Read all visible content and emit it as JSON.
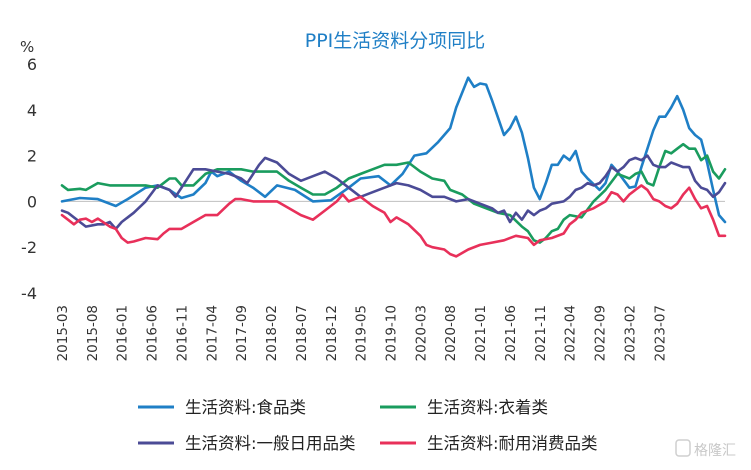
{
  "chart_data": {
    "type": "line",
    "title": "PPI生活资料分项同比",
    "ylabel": "%",
    "ylim": [
      -4,
      6
    ],
    "y_ticks": [
      "-4",
      "-2",
      "0",
      "2",
      "4",
      "6"
    ],
    "x_ticks": [
      "2015-03",
      "2015-08",
      "2016-01",
      "2016-06",
      "2016-11",
      "2017-04",
      "2017-09",
      "2018-02",
      "2018-07",
      "2018-12",
      "2019-05",
      "2019-10",
      "2020-03",
      "2020-08",
      "2021-01",
      "2021-06",
      "2021-11",
      "2022-04",
      "2022-09",
      "2023-02",
      "2023-07"
    ],
    "x_start": "2015-03",
    "x_end": "2023-07",
    "legend_position": "bottom",
    "series": [
      {
        "name": "生活资料:食品类",
        "color": "#1f7fc6",
        "keyframes": [
          [
            0,
            0.0
          ],
          [
            3,
            0.15
          ],
          [
            6,
            0.1
          ],
          [
            9,
            -0.2
          ],
          [
            11,
            0.1
          ],
          [
            14,
            0.6
          ],
          [
            16,
            0.7
          ],
          [
            18,
            0.5
          ],
          [
            20,
            0.15
          ],
          [
            22,
            0.3
          ],
          [
            24,
            0.8
          ],
          [
            25,
            1.3
          ],
          [
            26,
            1.1
          ],
          [
            28,
            1.3
          ],
          [
            30,
            0.9
          ],
          [
            32,
            0.6
          ],
          [
            34,
            0.2
          ],
          [
            36,
            0.7
          ],
          [
            39,
            0.5
          ],
          [
            42,
            0.0
          ],
          [
            45,
            0.05
          ],
          [
            48,
            0.6
          ],
          [
            50,
            1.0
          ],
          [
            53,
            1.1
          ],
          [
            55,
            0.7
          ],
          [
            57,
            1.2
          ],
          [
            59,
            2.0
          ],
          [
            61,
            2.1
          ],
          [
            63,
            2.6
          ],
          [
            65,
            3.2
          ],
          [
            66,
            4.1
          ],
          [
            68,
            5.4
          ],
          [
            69,
            5.0
          ],
          [
            70,
            5.15
          ],
          [
            71,
            5.1
          ],
          [
            72,
            4.4
          ],
          [
            74,
            2.9
          ],
          [
            75,
            3.2
          ],
          [
            76,
            3.7
          ],
          [
            77,
            3.0
          ],
          [
            78,
            1.9
          ],
          [
            79,
            0.6
          ],
          [
            80,
            0.1
          ],
          [
            81,
            0.8
          ],
          [
            82,
            1.6
          ],
          [
            83,
            1.6
          ],
          [
            84,
            2.0
          ],
          [
            85,
            1.8
          ],
          [
            86,
            2.2
          ],
          [
            87,
            1.3
          ],
          [
            88,
            1.0
          ],
          [
            90,
            0.5
          ],
          [
            91,
            0.8
          ],
          [
            92,
            1.6
          ],
          [
            93,
            1.3
          ],
          [
            95,
            0.6
          ],
          [
            96,
            0.65
          ],
          [
            97,
            1.5
          ],
          [
            98,
            2.3
          ],
          [
            99,
            3.1
          ],
          [
            100,
            3.7
          ],
          [
            101,
            3.7
          ],
          [
            102,
            4.1
          ],
          [
            103,
            4.6
          ],
          [
            104,
            4.0
          ],
          [
            105,
            3.2
          ],
          [
            106,
            2.9
          ],
          [
            107,
            2.7
          ],
          [
            108,
            1.7
          ],
          [
            109,
            0.5
          ],
          [
            110,
            -0.6
          ],
          [
            111,
            -0.9
          ]
        ]
      },
      {
        "name": "生活资料:衣着类",
        "color": "#1a9c5e",
        "keyframes": [
          [
            0,
            0.7
          ],
          [
            1,
            0.5
          ],
          [
            3,
            0.55
          ],
          [
            4,
            0.5
          ],
          [
            6,
            0.8
          ],
          [
            8,
            0.7
          ],
          [
            12,
            0.7
          ],
          [
            14,
            0.7
          ],
          [
            16,
            0.6
          ],
          [
            18,
            1.0
          ],
          [
            19,
            1.0
          ],
          [
            20,
            0.7
          ],
          [
            22,
            0.7
          ],
          [
            24,
            1.2
          ],
          [
            26,
            1.4
          ],
          [
            28,
            1.4
          ],
          [
            30,
            1.4
          ],
          [
            32,
            1.3
          ],
          [
            34,
            1.3
          ],
          [
            36,
            1.3
          ],
          [
            38,
            0.9
          ],
          [
            40,
            0.6
          ],
          [
            42,
            0.3
          ],
          [
            44,
            0.3
          ],
          [
            46,
            0.6
          ],
          [
            48,
            1.0
          ],
          [
            50,
            1.2
          ],
          [
            52,
            1.4
          ],
          [
            54,
            1.6
          ],
          [
            56,
            1.6
          ],
          [
            58,
            1.7
          ],
          [
            60,
            1.3
          ],
          [
            62,
            1.0
          ],
          [
            64,
            0.9
          ],
          [
            65,
            0.5
          ],
          [
            67,
            0.3
          ],
          [
            69,
            -0.1
          ],
          [
            71,
            -0.3
          ],
          [
            73,
            -0.5
          ],
          [
            75,
            -0.6
          ],
          [
            77,
            -1.1
          ],
          [
            78,
            -1.3
          ],
          [
            79,
            -1.7
          ],
          [
            80,
            -1.8
          ],
          [
            81,
            -1.6
          ],
          [
            82,
            -1.3
          ],
          [
            83,
            -1.2
          ],
          [
            84,
            -0.8
          ],
          [
            85,
            -0.6
          ],
          [
            87,
            -0.7
          ],
          [
            89,
            0.0
          ],
          [
            91,
            0.5
          ],
          [
            93,
            1.2
          ],
          [
            94,
            1.1
          ],
          [
            95,
            1.0
          ],
          [
            96,
            1.2
          ],
          [
            97,
            1.3
          ],
          [
            98,
            0.8
          ],
          [
            99,
            0.7
          ],
          [
            100,
            1.5
          ],
          [
            101,
            2.2
          ],
          [
            102,
            2.1
          ],
          [
            103,
            2.3
          ],
          [
            104,
            2.5
          ],
          [
            105,
            2.3
          ],
          [
            106,
            2.3
          ],
          [
            107,
            1.8
          ],
          [
            108,
            2.0
          ],
          [
            109,
            1.3
          ],
          [
            110,
            1.0
          ],
          [
            111,
            1.4
          ]
        ]
      },
      {
        "name": "生活资料:一般日用品类",
        "color": "#4b4b96",
        "keyframes": [
          [
            0,
            -0.4
          ],
          [
            1,
            -0.5
          ],
          [
            3,
            -0.9
          ],
          [
            4,
            -1.1
          ],
          [
            6,
            -1.0
          ],
          [
            7,
            -1.0
          ],
          [
            8,
            -0.9
          ],
          [
            9,
            -1.2
          ],
          [
            10,
            -0.9
          ],
          [
            12,
            -0.5
          ],
          [
            14,
            0.0
          ],
          [
            16,
            0.7
          ],
          [
            18,
            0.5
          ],
          [
            19,
            0.2
          ],
          [
            20,
            0.6
          ],
          [
            22,
            1.4
          ],
          [
            24,
            1.4
          ],
          [
            26,
            1.3
          ],
          [
            28,
            1.2
          ],
          [
            30,
            1.0
          ],
          [
            31,
            0.8
          ],
          [
            33,
            1.6
          ],
          [
            34,
            1.9
          ],
          [
            36,
            1.7
          ],
          [
            38,
            1.2
          ],
          [
            40,
            0.9
          ],
          [
            42,
            1.1
          ],
          [
            44,
            1.3
          ],
          [
            46,
            1.0
          ],
          [
            48,
            0.6
          ],
          [
            50,
            0.2
          ],
          [
            52,
            0.4
          ],
          [
            54,
            0.6
          ],
          [
            56,
            0.8
          ],
          [
            58,
            0.7
          ],
          [
            60,
            0.5
          ],
          [
            62,
            0.2
          ],
          [
            64,
            0.2
          ],
          [
            66,
            0.0
          ],
          [
            68,
            0.1
          ],
          [
            70,
            -0.1
          ],
          [
            72,
            -0.3
          ],
          [
            73,
            -0.5
          ],
          [
            74,
            -0.4
          ],
          [
            75,
            -0.9
          ],
          [
            76,
            -0.5
          ],
          [
            77,
            -0.8
          ],
          [
            78,
            -0.4
          ],
          [
            79,
            -0.6
          ],
          [
            80,
            -0.4
          ],
          [
            81,
            -0.3
          ],
          [
            82,
            -0.1
          ],
          [
            84,
            0.0
          ],
          [
            85,
            0.2
          ],
          [
            86,
            0.5
          ],
          [
            87,
            0.6
          ],
          [
            88,
            0.8
          ],
          [
            89,
            0.7
          ],
          [
            90,
            0.8
          ],
          [
            91,
            1.1
          ],
          [
            92,
            1.5
          ],
          [
            93,
            1.3
          ],
          [
            94,
            1.5
          ],
          [
            95,
            1.8
          ],
          [
            96,
            1.9
          ],
          [
            97,
            1.8
          ],
          [
            98,
            2.0
          ],
          [
            99,
            1.6
          ],
          [
            100,
            1.5
          ],
          [
            101,
            1.5
          ],
          [
            102,
            1.7
          ],
          [
            103,
            1.6
          ],
          [
            104,
            1.5
          ],
          [
            105,
            1.5
          ],
          [
            106,
            0.9
          ],
          [
            107,
            0.6
          ],
          [
            108,
            0.5
          ],
          [
            109,
            0.2
          ],
          [
            110,
            0.4
          ],
          [
            111,
            0.8
          ]
        ]
      },
      {
        "name": "生活资料:耐用消费品类",
        "color": "#e8305a",
        "keyframes": [
          [
            0,
            -0.6
          ],
          [
            1,
            -0.8
          ],
          [
            2,
            -1.0
          ],
          [
            3,
            -0.8
          ],
          [
            4,
            -0.75
          ],
          [
            5,
            -0.9
          ],
          [
            6,
            -0.75
          ],
          [
            8,
            -1.1
          ],
          [
            9,
            -1.2
          ],
          [
            10,
            -1.6
          ],
          [
            11,
            -1.8
          ],
          [
            12,
            -1.75
          ],
          [
            14,
            -1.6
          ],
          [
            16,
            -1.65
          ],
          [
            17,
            -1.4
          ],
          [
            18,
            -1.2
          ],
          [
            20,
            -1.2
          ],
          [
            22,
            -0.9
          ],
          [
            24,
            -0.6
          ],
          [
            26,
            -0.6
          ],
          [
            28,
            -0.1
          ],
          [
            29,
            0.1
          ],
          [
            30,
            0.1
          ],
          [
            32,
            0.0
          ],
          [
            34,
            0.0
          ],
          [
            36,
            0.0
          ],
          [
            38,
            -0.3
          ],
          [
            40,
            -0.6
          ],
          [
            42,
            -0.8
          ],
          [
            44,
            -0.4
          ],
          [
            46,
            0.0
          ],
          [
            47,
            0.3
          ],
          [
            48,
            0.0
          ],
          [
            50,
            0.2
          ],
          [
            52,
            -0.2
          ],
          [
            54,
            -0.5
          ],
          [
            55,
            -0.9
          ],
          [
            56,
            -0.7
          ],
          [
            58,
            -1.0
          ],
          [
            60,
            -1.5
          ],
          [
            61,
            -1.9
          ],
          [
            62,
            -2.0
          ],
          [
            64,
            -2.1
          ],
          [
            65,
            -2.3
          ],
          [
            66,
            -2.4
          ],
          [
            68,
            -2.1
          ],
          [
            70,
            -1.9
          ],
          [
            72,
            -1.8
          ],
          [
            74,
            -1.7
          ],
          [
            76,
            -1.5
          ],
          [
            78,
            -1.6
          ],
          [
            79,
            -1.9
          ],
          [
            80,
            -1.7
          ],
          [
            82,
            -1.6
          ],
          [
            84,
            -1.4
          ],
          [
            85,
            -1.0
          ],
          [
            86,
            -0.8
          ],
          [
            87,
            -0.5
          ],
          [
            89,
            -0.3
          ],
          [
            91,
            0.0
          ],
          [
            92,
            0.4
          ],
          [
            93,
            0.3
          ],
          [
            94,
            0.0
          ],
          [
            95,
            0.3
          ],
          [
            96,
            0.5
          ],
          [
            97,
            0.7
          ],
          [
            98,
            0.5
          ],
          [
            99,
            0.1
          ],
          [
            100,
            0.0
          ],
          [
            101,
            -0.2
          ],
          [
            102,
            -0.3
          ],
          [
            103,
            -0.1
          ],
          [
            104,
            0.3
          ],
          [
            105,
            0.6
          ],
          [
            106,
            0.1
          ],
          [
            107,
            -0.3
          ],
          [
            108,
            -0.2
          ],
          [
            109,
            -0.8
          ],
          [
            110,
            -1.5
          ],
          [
            111,
            -1.5
          ]
        ]
      }
    ]
  },
  "watermark": "格隆汇"
}
